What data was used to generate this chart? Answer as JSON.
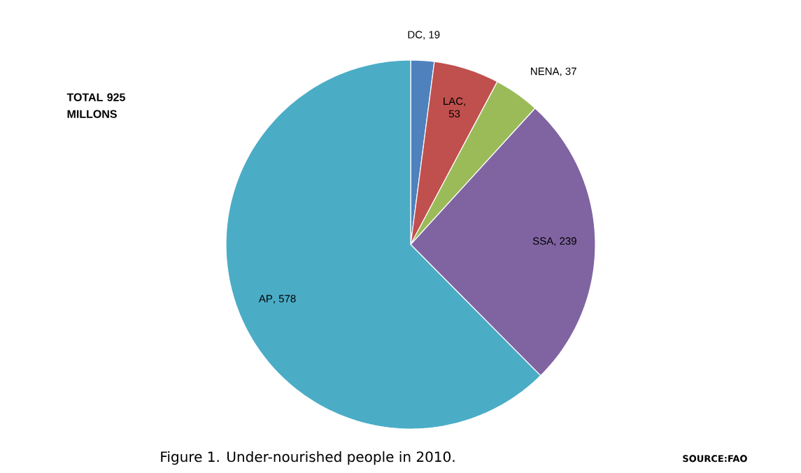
{
  "chart_data": {
    "type": "pie",
    "title": "Figure 1. Under-nourished people in 2010.",
    "categories": [
      "DC",
      "LAC",
      "NENA",
      "SSA",
      "AP"
    ],
    "values": [
      19,
      53,
      37,
      239,
      578
    ],
    "colors": [
      "#4f81bd",
      "#c0504d",
      "#9bbb59",
      "#8064a2",
      "#4bacc6"
    ],
    "value_labels": [
      ", 19",
      ", 53",
      ", 37",
      ", 239",
      ", 578"
    ],
    "annotations": [
      "TOTAL 925 MILLONS",
      "SOURCE:FAO"
    ]
  }
}
